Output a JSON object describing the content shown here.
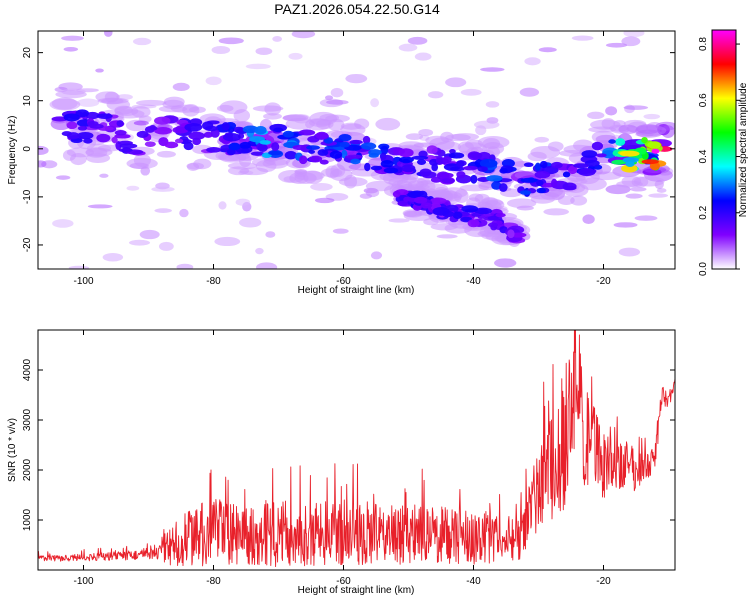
{
  "figure_title": "PAZ1.2026.054.22.50.G14",
  "chart_data": [
    {
      "type": "heatmap",
      "name": "spectrogram",
      "title": "PAZ1.2026.054.22.50.G14",
      "xlabel": "Height of straight line (km)",
      "ylabel": "Frequency (Hz)",
      "xlim": [
        -107,
        -9
      ],
      "ylim": [
        -25,
        24.5
      ],
      "x_ticks": [
        -100,
        -80,
        -60,
        -40,
        -20
      ],
      "x_tick_labels": [
        "-100",
        "-80",
        "-60",
        "-40",
        "-20"
      ],
      "y_ticks": [
        20,
        10,
        0,
        -10,
        -20
      ],
      "y_tick_labels": [
        "20",
        "10",
        "0",
        "-10",
        "-20"
      ],
      "ridge": [
        {
          "x": -104,
          "f": 6,
          "amp": 0.22
        },
        {
          "x": -100,
          "f": 4.5,
          "amp": 0.22
        },
        {
          "x": -96,
          "f": 4,
          "amp": 0.2
        },
        {
          "x": -92,
          "f": 2,
          "amp": 0.18
        },
        {
          "x": -88,
          "f": 4,
          "amp": 0.16
        },
        {
          "x": -84,
          "f": 3,
          "amp": 0.22
        },
        {
          "x": -80,
          "f": 2.5,
          "amp": 0.2
        },
        {
          "x": -76,
          "f": 2,
          "amp": 0.28
        },
        {
          "x": -72,
          "f": 1.5,
          "amp": 0.34
        },
        {
          "x": -68,
          "f": 1,
          "amp": 0.3
        },
        {
          "x": -64,
          "f": 0.5,
          "amp": 0.24
        },
        {
          "x": -60,
          "f": 0,
          "amp": 0.28
        },
        {
          "x": -56,
          "f": -1,
          "amp": 0.3
        },
        {
          "x": -52,
          "f": -2,
          "amp": 0.24
        },
        {
          "x": -48,
          "f": -3,
          "amp": 0.22
        },
        {
          "x": -44,
          "f": -3.5,
          "amp": 0.2
        },
        {
          "x": -40,
          "f": -4,
          "amp": 0.24
        },
        {
          "x": -36,
          "f": -5,
          "amp": 0.3
        },
        {
          "x": -32,
          "f": -6,
          "amp": 0.28
        },
        {
          "x": -28,
          "f": -6.5,
          "amp": 0.26
        },
        {
          "x": -24,
          "f": -5,
          "amp": 0.22
        },
        {
          "x": -20,
          "f": -1,
          "amp": 0.3
        },
        {
          "x": -16,
          "f": -1,
          "amp": 0.6
        },
        {
          "x": -12,
          "f": -1,
          "amp": 0.7
        },
        {
          "x": -10,
          "f": -0.5,
          "amp": 0.85
        }
      ],
      "branch": [
        {
          "x": -52,
          "f": -10,
          "amp": 0.2
        },
        {
          "x": -48,
          "f": -11,
          "amp": 0.22
        },
        {
          "x": -44,
          "f": -13,
          "amp": 0.2
        },
        {
          "x": -40,
          "f": -14,
          "amp": 0.22
        },
        {
          "x": -36,
          "f": -15,
          "amp": 0.2
        },
        {
          "x": -33,
          "f": -18,
          "amp": 0.15
        }
      ],
      "colorbar": {
        "label": "Normalized spectral amplitude",
        "range": [
          0,
          0.85
        ],
        "ticks": [
          0.0,
          0.2,
          0.4,
          0.6,
          0.8
        ],
        "tick_labels": [
          "0.0",
          "0.2",
          "0.4",
          "0.6",
          "0.8"
        ],
        "colors": [
          "#ffffff",
          "#8000ff",
          "#0000ff",
          "#00ffff",
          "#00ff00",
          "#ffff00",
          "#ff0000",
          "#ff00ff"
        ]
      }
    },
    {
      "type": "line",
      "name": "snr",
      "title": "",
      "xlabel": "Height of straight line (km)",
      "ylabel": "SNR (10 * v/v)",
      "xlim": [
        -107,
        -9
      ],
      "ylim": [
        0,
        4800
      ],
      "x_ticks": [
        -100,
        -80,
        -60,
        -40,
        -20
      ],
      "x_tick_labels": [
        "-100",
        "-80",
        "-60",
        "-40",
        "-20"
      ],
      "y_ticks": [
        1000,
        2000,
        3000,
        4000
      ],
      "y_tick_labels": [
        "1000",
        "2000",
        "3000",
        "4000"
      ],
      "line_color": "#e8202a",
      "series": [
        {
          "name": "SNR",
          "x": [
            -107,
            -104,
            -101,
            -98,
            -95,
            -92,
            -89,
            -86,
            -83,
            -80,
            -77,
            -74,
            -71,
            -68,
            -65,
            -62,
            -59,
            -56,
            -53,
            -50,
            -47,
            -44,
            -41,
            -38,
            -35,
            -33,
            -31,
            -29,
            -27,
            -25,
            -24,
            -23,
            -22,
            -21,
            -20,
            -19,
            -18,
            -17,
            -16,
            -15,
            -14,
            -13,
            -12,
            -11,
            -10,
            -9
          ],
          "y": [
            250,
            230,
            250,
            260,
            280,
            300,
            320,
            500,
            700,
            750,
            720,
            700,
            760,
            720,
            700,
            750,
            760,
            720,
            700,
            710,
            720,
            700,
            650,
            650,
            600,
            700,
            1300,
            1900,
            2200,
            3200,
            3900,
            2600,
            2500,
            2500,
            2100,
            2300,
            2100,
            2000,
            2200,
            1900,
            2100,
            2100,
            2300,
            3500,
            3400,
            3700
          ],
          "envelope": [
            60,
            60,
            70,
            80,
            90,
            100,
            200,
            450,
            600,
            700,
            650,
            600,
            700,
            650,
            620,
            650,
            650,
            640,
            600,
            620,
            600,
            600,
            560,
            520,
            520,
            520,
            700,
            900,
            1200,
            1700,
            1300,
            1100,
            900,
            800,
            700,
            600,
            500,
            500,
            450,
            400,
            300,
            250,
            250,
            200,
            200,
            100
          ]
        }
      ]
    }
  ]
}
